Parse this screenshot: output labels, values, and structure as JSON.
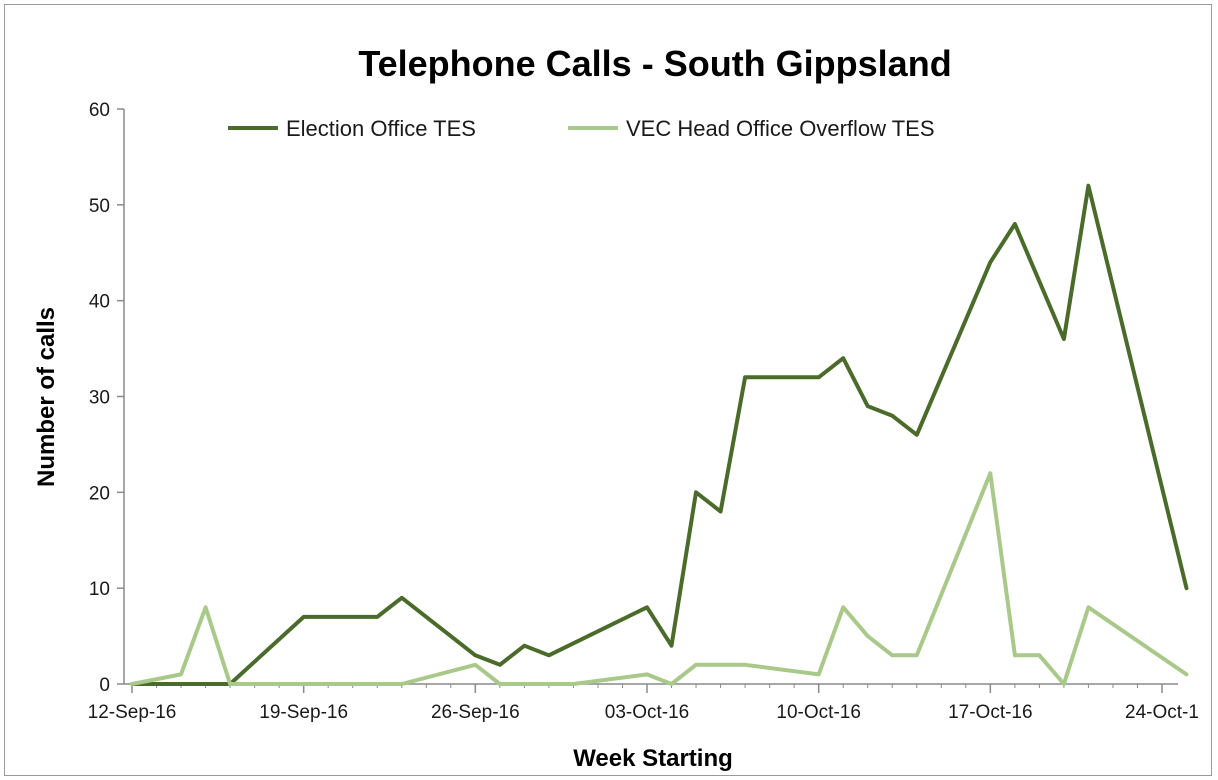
{
  "chart_data": {
    "type": "line",
    "title": "Telephone Calls - South Gippsland",
    "xlabel": "Week Starting",
    "ylabel": "Number of calls",
    "ylim": [
      0,
      60
    ],
    "yticks": [
      0,
      10,
      20,
      30,
      40,
      50,
      60
    ],
    "xlim": [
      "2016-09-12",
      "2016-10-24"
    ],
    "x_tick_labels": [
      "12-Sep-16",
      "19-Sep-16",
      "26-Sep-16",
      "03-Oct-16",
      "10-Oct-16",
      "17-Oct-16",
      "24-Oct-1"
    ],
    "grid": false,
    "legend_position": "top",
    "series": [
      {
        "name": "Election Office TES",
        "color": "#4a6b2a",
        "points": [
          [
            "2016-09-12",
            0
          ],
          [
            "2016-09-15",
            0
          ],
          [
            "2016-09-16",
            0
          ],
          [
            "2016-09-19",
            7
          ],
          [
            "2016-09-20",
            7
          ],
          [
            "2016-09-22",
            7
          ],
          [
            "2016-09-23",
            9
          ],
          [
            "2016-09-26",
            3
          ],
          [
            "2016-09-27",
            2
          ],
          [
            "2016-09-28",
            4
          ],
          [
            "2016-09-29",
            3
          ],
          [
            "2016-10-03",
            8
          ],
          [
            "2016-10-04",
            4
          ],
          [
            "2016-10-05",
            20
          ],
          [
            "2016-10-06",
            18
          ],
          [
            "2016-10-07",
            32
          ],
          [
            "2016-10-10",
            32
          ],
          [
            "2016-10-11",
            34
          ],
          [
            "2016-10-12",
            29
          ],
          [
            "2016-10-13",
            28
          ],
          [
            "2016-10-14",
            26
          ],
          [
            "2016-10-17",
            44
          ],
          [
            "2016-10-18",
            48
          ],
          [
            "2016-10-20",
            36
          ],
          [
            "2016-10-21",
            52
          ],
          [
            "2016-10-25",
            10
          ]
        ]
      },
      {
        "name": "VEC Head Office Overflow TES",
        "color": "#a9c98a",
        "points": [
          [
            "2016-09-12",
            0
          ],
          [
            "2016-09-14",
            1
          ],
          [
            "2016-09-15",
            8
          ],
          [
            "2016-09-16",
            0
          ],
          [
            "2016-09-23",
            0
          ],
          [
            "2016-09-26",
            2
          ],
          [
            "2016-09-27",
            0
          ],
          [
            "2016-09-30",
            0
          ],
          [
            "2016-10-03",
            1
          ],
          [
            "2016-10-04",
            0
          ],
          [
            "2016-10-05",
            2
          ],
          [
            "2016-10-07",
            2
          ],
          [
            "2016-10-10",
            1
          ],
          [
            "2016-10-11",
            8
          ],
          [
            "2016-10-12",
            5
          ],
          [
            "2016-10-13",
            3
          ],
          [
            "2016-10-14",
            3
          ],
          [
            "2016-10-17",
            22
          ],
          [
            "2016-10-18",
            3
          ],
          [
            "2016-10-19",
            3
          ],
          [
            "2016-10-20",
            0
          ],
          [
            "2016-10-21",
            8
          ],
          [
            "2016-10-25",
            1
          ]
        ]
      }
    ]
  }
}
